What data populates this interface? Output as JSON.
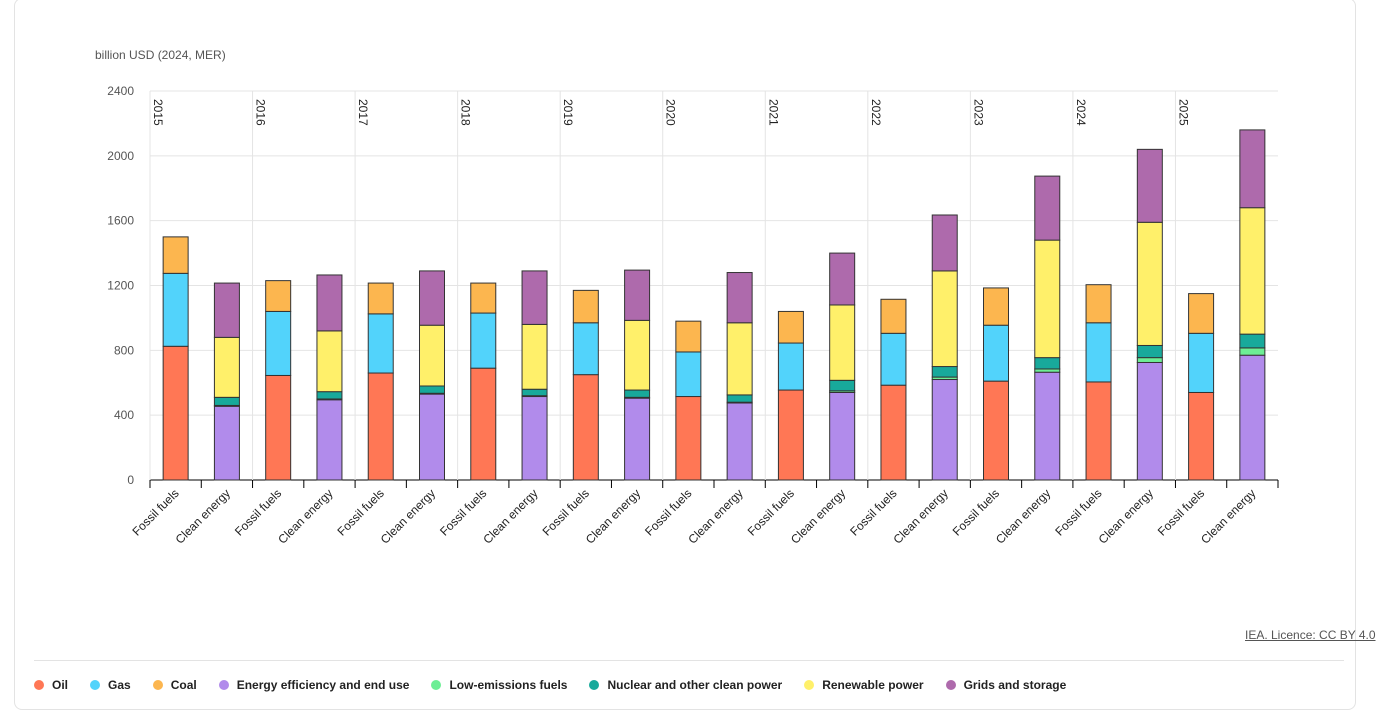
{
  "source": "IEA. Licence: CC BY 4.0",
  "chart_data": {
    "type": "bar",
    "stacked": true,
    "ylabel": "billion USD (2024, MER)",
    "ylim": [
      0,
      2400
    ],
    "yticks": [
      0,
      400,
      800,
      1200,
      1600,
      2000,
      2400
    ],
    "grid": true,
    "legend_position": "bottom",
    "years": [
      "2015",
      "2016",
      "2017",
      "2018",
      "2019",
      "2020",
      "2021",
      "2022",
      "2023",
      "2024",
      "2025"
    ],
    "groups": [
      "Fossil fuels",
      "Clean energy"
    ],
    "series": [
      {
        "name": "Oil",
        "group": "Fossil fuels",
        "color": "#FF7755",
        "values": [
          825,
          645,
          660,
          690,
          650,
          515,
          555,
          585,
          610,
          605,
          540
        ]
      },
      {
        "name": "Gas",
        "group": "Fossil fuels",
        "color": "#52D3FB",
        "values": [
          450,
          395,
          365,
          340,
          320,
          275,
          290,
          320,
          345,
          365,
          365
        ]
      },
      {
        "name": "Coal",
        "group": "Fossil fuels",
        "color": "#FCB64F",
        "values": [
          225,
          190,
          190,
          185,
          200,
          190,
          195,
          210,
          230,
          235,
          245
        ]
      },
      {
        "name": "Energy efficiency and end use",
        "group": "Clean energy",
        "color": "#B18BEB",
        "values": [
          455,
          495,
          530,
          515,
          505,
          475,
          540,
          620,
          665,
          725,
          770
        ]
      },
      {
        "name": "Low-emissions fuels",
        "group": "Clean energy",
        "color": "#6DEE95",
        "values": [
          5,
          5,
          5,
          5,
          5,
          5,
          10,
          15,
          20,
          30,
          45
        ]
      },
      {
        "name": "Nuclear and other clean power",
        "group": "Clean energy",
        "color": "#18A99B",
        "values": [
          50,
          45,
          45,
          40,
          45,
          45,
          65,
          65,
          70,
          75,
          85
        ]
      },
      {
        "name": "Renewable power",
        "group": "Clean energy",
        "color": "#FFF06A",
        "values": [
          370,
          375,
          375,
          400,
          430,
          445,
          465,
          590,
          725,
          760,
          780
        ]
      },
      {
        "name": "Grids and storage",
        "group": "Clean energy",
        "color": "#AE6AAC",
        "values": [
          335,
          345,
          335,
          330,
          310,
          310,
          320,
          345,
          395,
          450,
          480
        ]
      }
    ]
  }
}
